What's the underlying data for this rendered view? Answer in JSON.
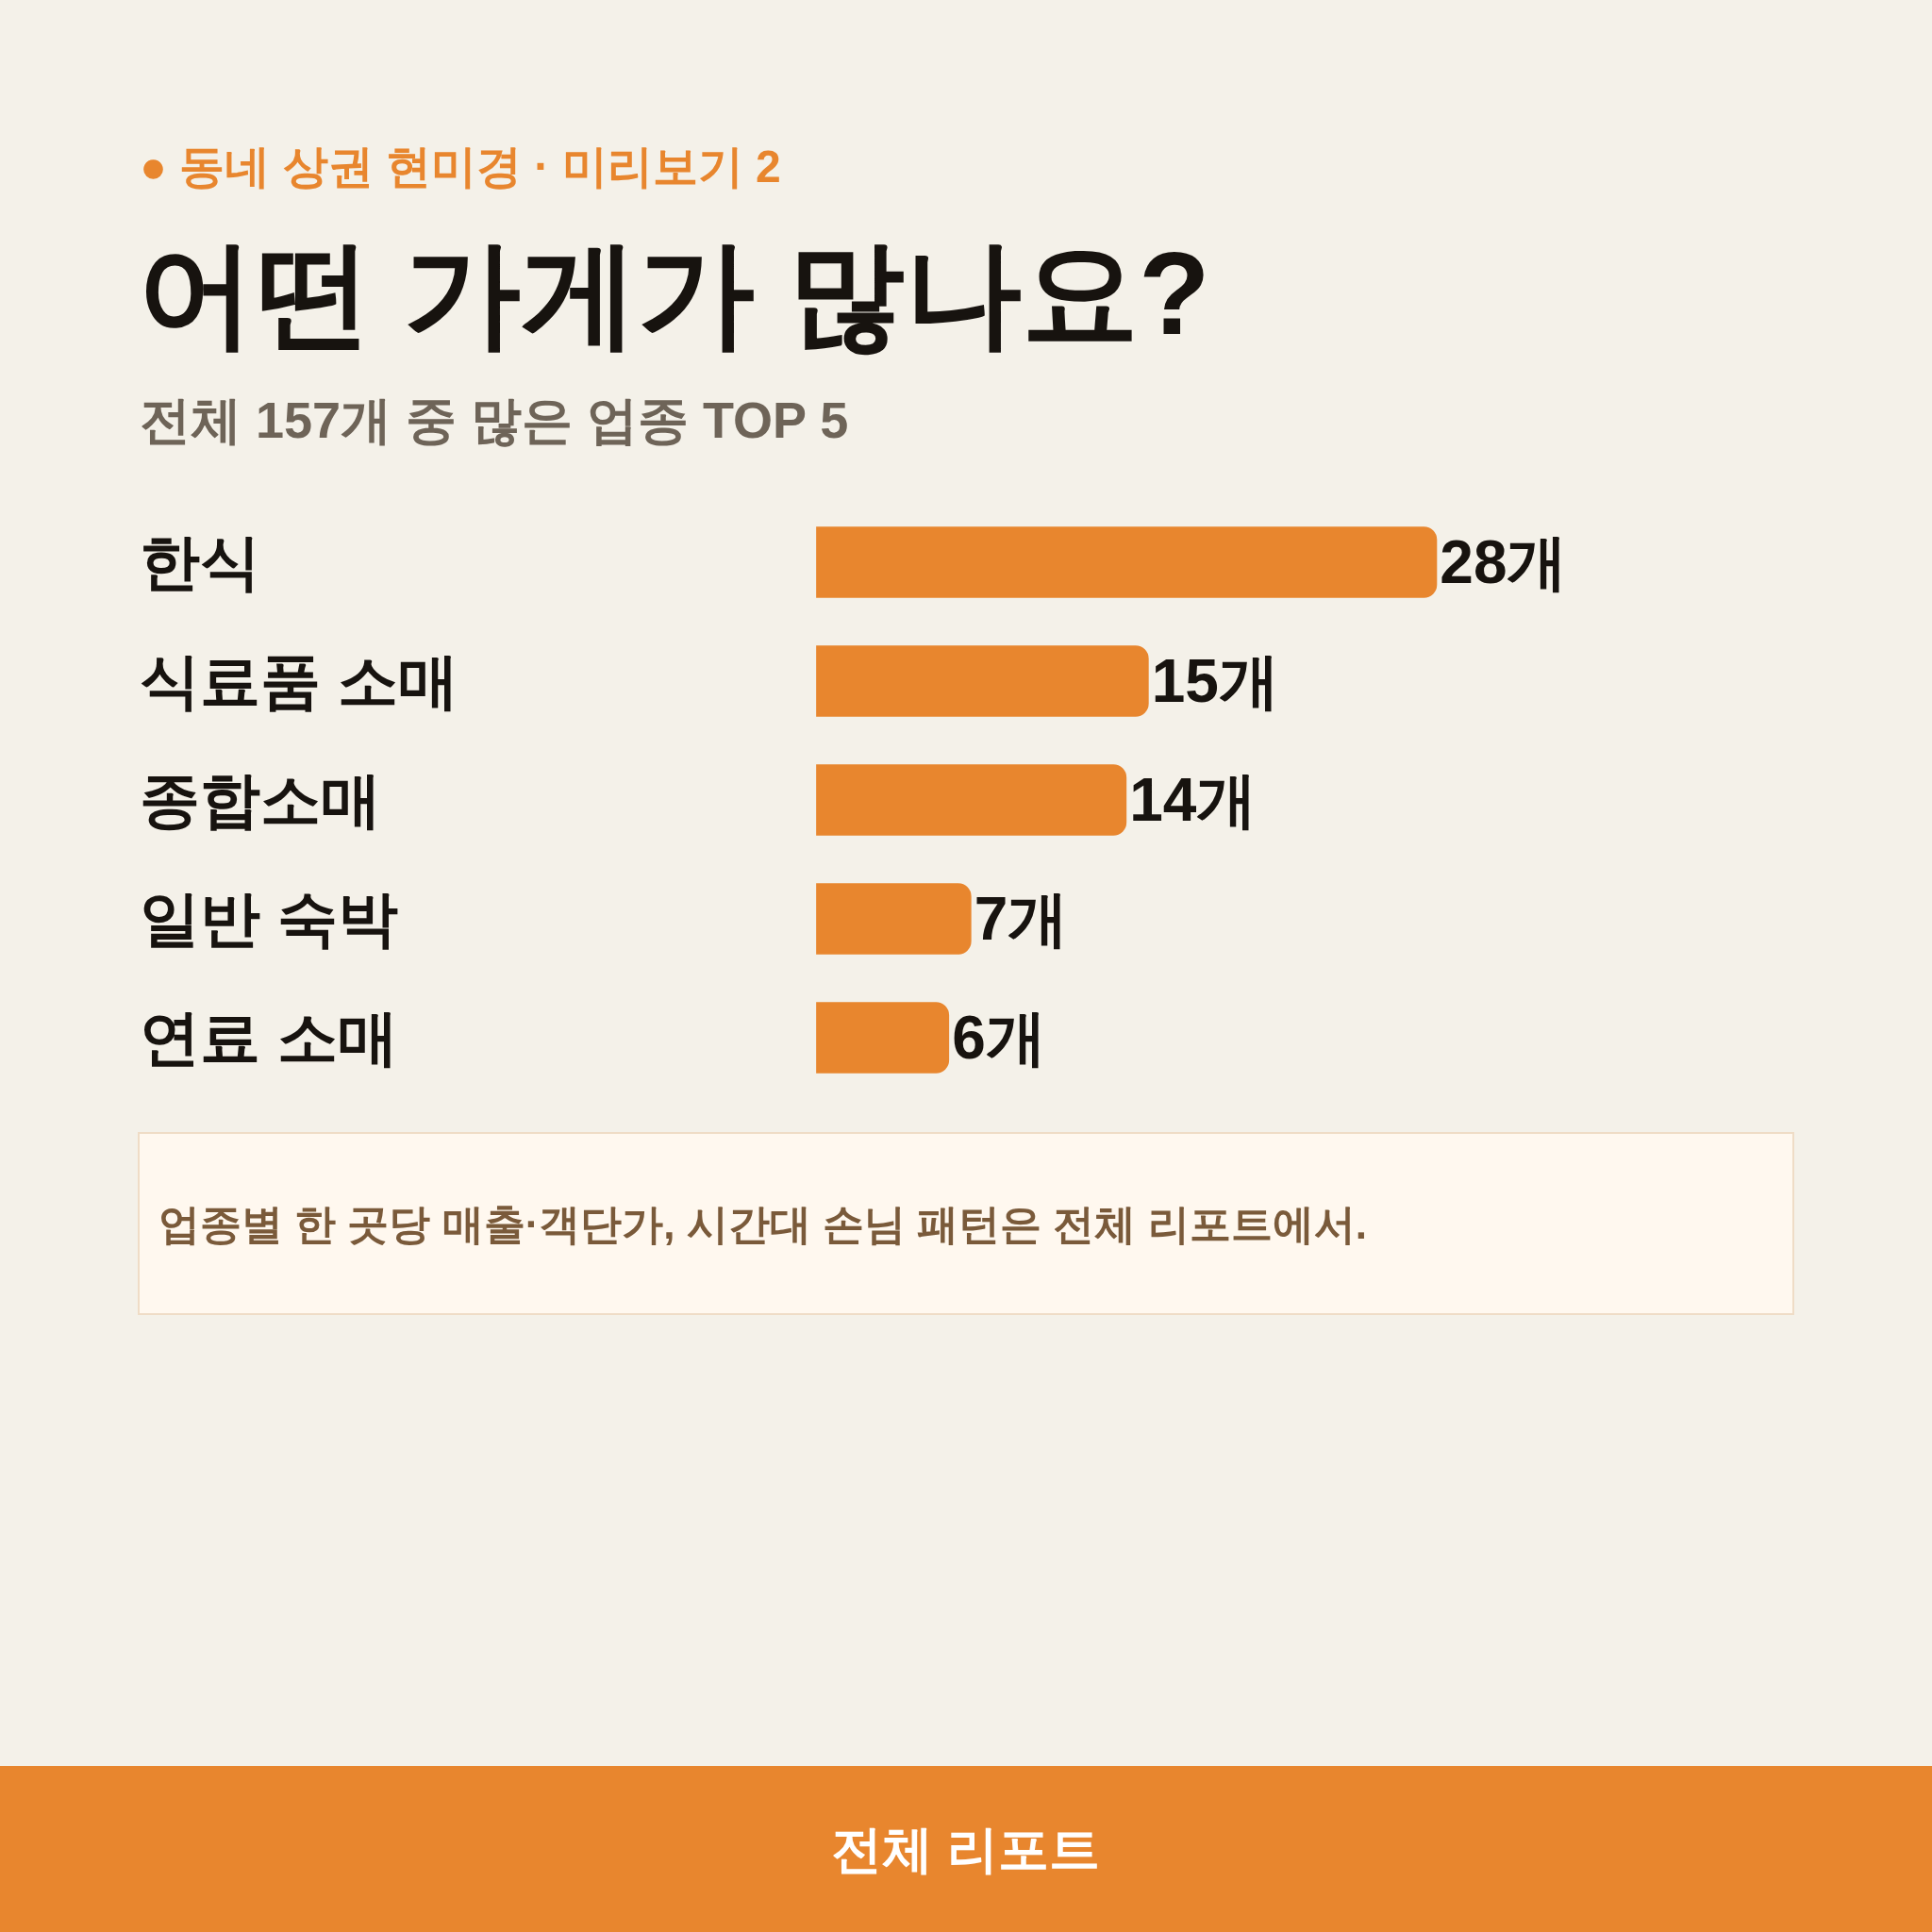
{
  "chart_data": {
    "type": "bar",
    "orientation": "horizontal",
    "title": "어떤 가게가 많나요?",
    "subtitle": "전체 157개 중 많은 업종 TOP 5",
    "categories": [
      "한식",
      "식료품 소매",
      "종합소매",
      "일반 숙박",
      "연료 소매"
    ],
    "values": [
      28,
      15,
      14,
      7,
      6
    ],
    "value_labels": [
      "28개",
      "15개",
      "14개",
      "7개",
      "6개"
    ],
    "color": "#e8862e",
    "tick_labels": "y",
    "legend": false,
    "annotations": [
      "● 동네 상권 현미경 · 미리보기 2",
      "업종별 한 곳당 매출·객단가, 시간대 손님 패턴은 전체 리포트에서.",
      "전체 리포트"
    ]
  }
}
